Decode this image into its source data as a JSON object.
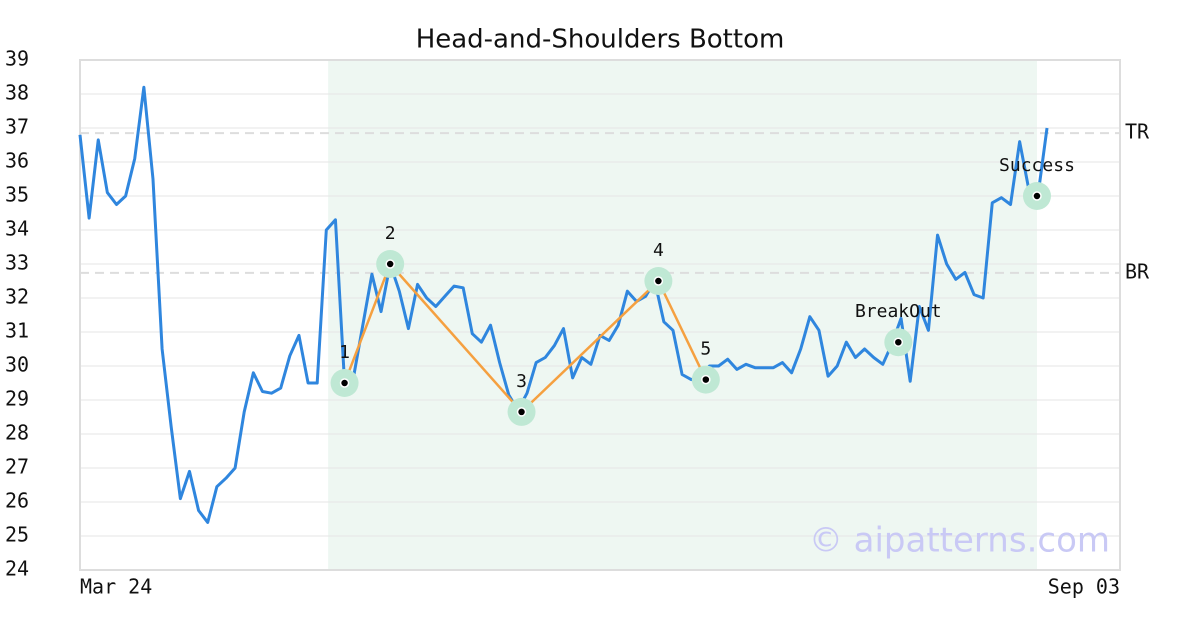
{
  "chart_data": {
    "type": "line",
    "title": "Head-and-Shoulders Bottom",
    "color": "#2f86de",
    "x": [
      0,
      1,
      2,
      3,
      4,
      5,
      6,
      7,
      8,
      9,
      10,
      11,
      12,
      13,
      14,
      15,
      16,
      17,
      18,
      19,
      20,
      21,
      22,
      23,
      24,
      25,
      26,
      27,
      28,
      29,
      30,
      31,
      32,
      33,
      34,
      35,
      36,
      37,
      38,
      39,
      40,
      41,
      42,
      43,
      44,
      45,
      46,
      47,
      48,
      49,
      50,
      51,
      52,
      53,
      54,
      55,
      56,
      57,
      58,
      59,
      60,
      61,
      62,
      63,
      64,
      65,
      66,
      67,
      68,
      69,
      70,
      71,
      72,
      73,
      74,
      75,
      76,
      77,
      78,
      79,
      80,
      81,
      82,
      83,
      84,
      85,
      86,
      87,
      88,
      89,
      90,
      91,
      92,
      93,
      94,
      95,
      96,
      97,
      98,
      99,
      100,
      101,
      102,
      103,
      104,
      105,
      106
    ],
    "values": [
      36.8,
      34.35,
      36.65,
      35.1,
      34.75,
      35.0,
      36.1,
      38.2,
      35.5,
      30.5,
      28.2,
      26.1,
      26.9,
      25.75,
      25.4,
      26.45,
      26.7,
      27.0,
      28.65,
      29.8,
      29.25,
      29.2,
      29.35,
      30.3,
      30.9,
      29.5,
      29.5,
      34.0,
      34.3,
      29.5,
      29.7,
      31.2,
      32.7,
      31.6,
      33.0,
      32.2,
      31.1,
      32.4,
      32.0,
      31.75,
      32.05,
      32.35,
      32.3,
      30.95,
      30.7,
      31.2,
      30.1,
      29.15,
      28.7,
      29.2,
      30.1,
      30.25,
      30.6,
      31.1,
      29.65,
      30.25,
      30.05,
      30.9,
      30.75,
      31.2,
      32.2,
      31.9,
      32.05,
      32.5,
      31.3,
      31.05,
      29.75,
      29.6,
      29.7,
      30.0,
      30.0,
      30.2,
      29.9,
      30.05,
      29.95,
      29.95,
      29.95,
      30.1,
      29.8,
      30.5,
      31.45,
      31.05,
      29.7,
      30.0,
      30.7,
      30.25,
      30.5,
      30.25,
      30.05,
      30.65,
      31.4,
      29.55,
      31.75,
      31.05,
      33.85,
      33.0,
      32.55,
      32.75,
      32.1,
      32.0,
      34.8,
      34.95,
      34.75,
      36.6,
      35.2,
      35.0,
      37.0
    ],
    "xlim": [
      0,
      114
    ],
    "xticks": [
      {
        "value": 0,
        "label": "Mar 24"
      },
      {
        "value": 114,
        "label": "Sep 03"
      }
    ],
    "ylim": [
      24,
      39
    ],
    "yticks": [
      24,
      25,
      26,
      27,
      28,
      29,
      30,
      31,
      32,
      33,
      34,
      35,
      36,
      37,
      38,
      39
    ],
    "grid": true,
    "shaded_range": [
      27.2,
      104.9
    ],
    "shaded_color": "#eef7f2",
    "levels": [
      {
        "label": "TR",
        "value": 36.85
      },
      {
        "label": "BR",
        "value": 32.74
      }
    ],
    "pattern_color": "#f5a040",
    "marker_color": "#bfe8d4",
    "pattern": [
      {
        "label": "1",
        "x": 29,
        "y": 29.5
      },
      {
        "label": "2",
        "x": 34,
        "y": 33.0
      },
      {
        "label": "3",
        "x": 48.4,
        "y": 28.65
      },
      {
        "label": "4",
        "x": 63.4,
        "y": 32.5
      },
      {
        "label": "5",
        "x": 68.6,
        "y": 29.6
      }
    ],
    "signals": [
      {
        "label": "BreakOut",
        "x": 89.7,
        "y": 30.7
      },
      {
        "label": "Success",
        "x": 104.9,
        "y": 35.0
      }
    ],
    "watermark": "© aipatterns.com"
  }
}
